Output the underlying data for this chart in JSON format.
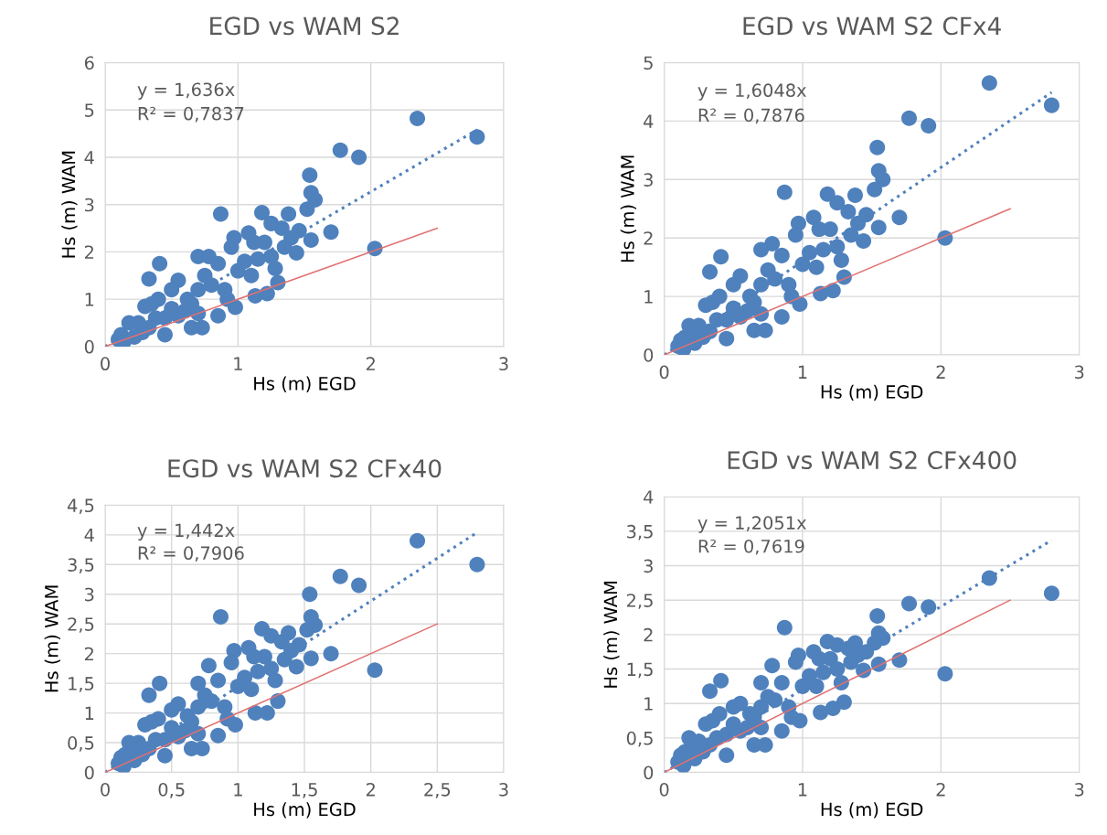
{
  "chart_data": [
    {
      "type": "scatter",
      "title": "EGD vs WAM S2",
      "xlabel": "Hs (m) EGD",
      "ylabel": "Hs (m) WAM",
      "annotations": [
        "y = 1,636x",
        "R² = 0,7837"
      ],
      "xlim": [
        0,
        3
      ],
      "xticks": [
        0,
        1,
        2,
        3
      ],
      "ylim": [
        0,
        6
      ],
      "yticks": [
        0,
        1,
        2,
        3,
        4,
        5,
        6
      ],
      "grid": true,
      "legend": false,
      "series": [
        {
          "type": "scatter",
          "color": "#4f81bd",
          "marker": "circle",
          "x": [
            2.35,
            2.8,
            1.77,
            1.91,
            1.54,
            1.55,
            1.58,
            1.52,
            1.7,
            2.03,
            1.55,
            0.87,
            0.41,
            0.33,
            1.18,
            1.38,
            1.46,
            1.44,
            1.3,
            1.22,
            1.13,
            0.98,
            0.85,
            0.73,
            0.65,
            0.45,
            0.97,
            0.95,
            1.08,
            1.25,
            1.33,
            1.2,
            1.28,
            1.15,
            1.05,
            1.0,
            0.78,
            0.7,
            0.75,
            0.85,
            0.55,
            0.5,
            0.62,
            0.7,
            0.8,
            0.9,
            0.92,
            0.6,
            0.4,
            0.35,
            0.3,
            0.38,
            0.25,
            0.12,
            0.18,
            0.1,
            0.14,
            0.22,
            0.28,
            0.33,
            0.45,
            0.5,
            0.55,
            0.65,
            0.7,
            1.1,
            1.12,
            1.35,
            1.4,
            1.25
          ],
          "values": [
            4.82,
            4.43,
            4.15,
            4.0,
            3.62,
            3.25,
            3.1,
            2.9,
            2.42,
            2.07,
            2.25,
            2.8,
            1.75,
            1.43,
            2.83,
            2.8,
            2.45,
            1.98,
            1.35,
            1.12,
            1.07,
            0.83,
            0.65,
            0.4,
            0.4,
            0.25,
            2.3,
            2.1,
            2.4,
            2.6,
            2.5,
            2.2,
            1.65,
            1.85,
            1.8,
            1.6,
            1.9,
            1.9,
            1.5,
            1.75,
            1.4,
            1.2,
            1.0,
            1.2,
            1.3,
            1.2,
            1.0,
            0.75,
            1.0,
            0.9,
            0.85,
            0.6,
            0.5,
            0.25,
            0.5,
            0.15,
            0.1,
            0.2,
            0.3,
            0.4,
            0.6,
            0.8,
            0.65,
            0.9,
            0.7,
            1.5,
            2.2,
            2.1,
            2.3,
            1.9
          ]
        },
        {
          "type": "line",
          "color": "#4f81bd",
          "line_style": "dotted",
          "marker": "none",
          "x": [
            0,
            2.8
          ],
          "values": [
            0,
            4.58
          ]
        },
        {
          "type": "line",
          "color": "#e07070",
          "line_style": "solid",
          "marker": "none",
          "x": [
            0,
            2.5
          ],
          "values": [
            0,
            2.5
          ]
        }
      ]
    },
    {
      "type": "scatter",
      "title": "EGD vs WAM S2 CFx4",
      "xlabel": "Hs (m) EGD",
      "ylabel": "Hs (m) WAM",
      "annotations": [
        "y = 1,6048x",
        "R² = 0,7876"
      ],
      "xlim": [
        0,
        3
      ],
      "xticks": [
        0,
        1,
        2,
        3
      ],
      "ylim": [
        0,
        5
      ],
      "yticks": [
        0,
        1,
        2,
        3,
        4,
        5
      ],
      "grid": true,
      "legend": false,
      "series": [
        {
          "type": "scatter",
          "color": "#4f81bd",
          "marker": "circle",
          "x": [
            2.35,
            2.8,
            1.77,
            1.91,
            1.54,
            1.55,
            1.58,
            1.52,
            1.7,
            2.03,
            1.55,
            0.87,
            0.41,
            0.33,
            1.18,
            1.38,
            1.46,
            1.44,
            1.3,
            1.22,
            1.13,
            0.98,
            0.85,
            0.73,
            0.65,
            0.45,
            0.97,
            0.95,
            1.08,
            1.25,
            1.33,
            1.2,
            1.28,
            1.15,
            1.05,
            1.0,
            0.78,
            0.7,
            0.75,
            0.85,
            0.55,
            0.5,
            0.62,
            0.7,
            0.8,
            0.9,
            0.92,
            0.6,
            0.4,
            0.35,
            0.3,
            0.38,
            0.25,
            0.2,
            0.15,
            0.12,
            0.18,
            0.1,
            0.14,
            0.22,
            0.28,
            0.33,
            0.45,
            0.5,
            0.55,
            0.65,
            0.7,
            1.1,
            1.12,
            1.35,
            1.4,
            1.25
          ],
          "values": [
            4.65,
            4.27,
            4.05,
            3.92,
            3.55,
            3.15,
            3.0,
            2.83,
            2.35,
            2.0,
            2.18,
            2.78,
            1.68,
            1.42,
            2.75,
            2.73,
            2.4,
            1.95,
            1.33,
            1.1,
            1.05,
            0.87,
            0.65,
            0.42,
            0.42,
            0.28,
            2.25,
            2.05,
            2.35,
            2.6,
            2.45,
            2.15,
            1.62,
            1.8,
            1.75,
            1.55,
            1.9,
            1.8,
            1.45,
            1.7,
            1.35,
            1.2,
            1.0,
            1.2,
            1.3,
            1.2,
            1.0,
            0.75,
            1.0,
            0.9,
            0.85,
            0.6,
            0.5,
            0.4,
            0.3,
            0.25,
            0.5,
            0.15,
            0.1,
            0.2,
            0.3,
            0.4,
            0.6,
            0.8,
            0.65,
            0.9,
            0.7,
            1.5,
            2.15,
            2.05,
            2.25,
            1.85
          ]
        },
        {
          "type": "line",
          "color": "#4f81bd",
          "line_style": "dotted",
          "marker": "none",
          "x": [
            0,
            2.8
          ],
          "values": [
            0,
            4.49
          ]
        },
        {
          "type": "line",
          "color": "#e07070",
          "line_style": "solid",
          "marker": "none",
          "x": [
            0,
            2.5
          ],
          "values": [
            0,
            2.5
          ]
        }
      ]
    },
    {
      "type": "scatter",
      "title": "EGD vs WAM S2 CFx40",
      "xlabel": "Hs (m) EGD",
      "ylabel": "Hs (m) WAM",
      "annotations": [
        "y = 1,442x",
        "R² = 0,7906"
      ],
      "xlim": [
        0,
        3
      ],
      "xticks": [
        0,
        {
          "value": 0.5,
          "label": "0,5"
        },
        1,
        {
          "value": 1.5,
          "label": "1,5"
        },
        2,
        {
          "value": 2.5,
          "label": "2,5"
        },
        3
      ],
      "ylim": [
        0,
        4.5
      ],
      "yticks": [
        0,
        {
          "value": 0.5,
          "label": "0,5"
        },
        1,
        {
          "value": 1.5,
          "label": "1,5"
        },
        2,
        {
          "value": 2.5,
          "label": "2,5"
        },
        3,
        {
          "value": 3.5,
          "label": "3,5"
        },
        4,
        {
          "value": 4.5,
          "label": "4,5"
        }
      ],
      "grid": true,
      "legend": false,
      "series": [
        {
          "type": "scatter",
          "color": "#4f81bd",
          "marker": "circle",
          "x": [
            2.35,
            2.8,
            1.77,
            1.91,
            1.54,
            1.55,
            1.58,
            1.52,
            1.7,
            2.03,
            1.55,
            0.87,
            0.41,
            0.33,
            1.18,
            1.38,
            1.46,
            1.44,
            1.3,
            1.22,
            1.13,
            0.98,
            0.85,
            0.73,
            0.65,
            0.45,
            0.97,
            0.95,
            1.08,
            1.25,
            1.33,
            1.2,
            1.28,
            1.15,
            1.05,
            1.0,
            0.78,
            0.7,
            0.75,
            0.85,
            0.55,
            0.5,
            0.62,
            0.7,
            0.8,
            0.9,
            0.92,
            0.6,
            0.4,
            0.35,
            0.3,
            0.38,
            0.25,
            0.2,
            0.15,
            0.12,
            0.18,
            0.1,
            0.14,
            0.22,
            0.28,
            0.33,
            0.45,
            0.5,
            0.55,
            0.65,
            0.7,
            1.1,
            1.12,
            1.35,
            1.4,
            1.25
          ],
          "values": [
            3.9,
            3.5,
            3.3,
            3.15,
            3.0,
            2.62,
            2.48,
            2.4,
            2.0,
            1.72,
            1.92,
            2.62,
            1.5,
            1.3,
            2.42,
            2.35,
            2.15,
            1.78,
            1.2,
            1.0,
            1.0,
            0.8,
            0.62,
            0.4,
            0.4,
            0.28,
            2.05,
            1.85,
            2.1,
            2.3,
            2.2,
            1.95,
            1.55,
            1.7,
            1.6,
            1.45,
            1.8,
            1.5,
            1.3,
            1.55,
            1.15,
            1.05,
            0.95,
            1.1,
            1.2,
            1.1,
            0.9,
            0.7,
            0.9,
            0.85,
            0.8,
            0.55,
            0.5,
            0.4,
            0.3,
            0.25,
            0.5,
            0.15,
            0.1,
            0.2,
            0.3,
            0.4,
            0.55,
            0.75,
            0.6,
            0.85,
            0.65,
            1.4,
            1.95,
            1.9,
            2.05,
            1.75
          ]
        },
        {
          "type": "line",
          "color": "#4f81bd",
          "line_style": "dotted",
          "marker": "none",
          "x": [
            0,
            2.8
          ],
          "values": [
            0,
            4.04
          ]
        },
        {
          "type": "line",
          "color": "#e07070",
          "line_style": "solid",
          "marker": "none",
          "x": [
            0,
            2.5
          ],
          "values": [
            0,
            2.5
          ]
        }
      ]
    },
    {
      "type": "scatter",
      "title": "EGD vs WAM S2 CFx400",
      "xlabel": "Hs (m) EGD",
      "ylabel": "Hs (m) WAM",
      "annotations": [
        "y = 1,2051x",
        "R² = 0,7619"
      ],
      "xlim": [
        0,
        3
      ],
      "xticks": [
        0,
        1,
        2,
        3
      ],
      "ylim": [
        0,
        4
      ],
      "yticks": [
        0,
        {
          "value": 0.5,
          "label": "0,5"
        },
        1,
        {
          "value": 1.5,
          "label": "1,5"
        },
        2,
        {
          "value": 2.5,
          "label": "2,5"
        },
        3,
        {
          "value": 3.5,
          "label": "3,5"
        },
        4
      ],
      "grid": true,
      "legend": false,
      "series": [
        {
          "type": "scatter",
          "color": "#4f81bd",
          "marker": "circle",
          "x": [
            2.35,
            2.8,
            1.77,
            1.91,
            1.54,
            1.55,
            1.58,
            1.52,
            1.7,
            2.03,
            1.55,
            0.87,
            0.41,
            0.33,
            1.18,
            1.38,
            1.46,
            1.44,
            1.3,
            1.22,
            1.13,
            0.98,
            0.85,
            0.73,
            0.65,
            0.45,
            0.97,
            0.95,
            1.08,
            1.25,
            1.33,
            1.2,
            1.28,
            1.15,
            1.05,
            1.0,
            0.78,
            0.7,
            0.75,
            0.85,
            0.55,
            0.5,
            0.62,
            0.7,
            0.8,
            0.9,
            0.92,
            0.6,
            0.4,
            0.35,
            0.3,
            0.38,
            0.25,
            0.2,
            0.15,
            0.12,
            0.18,
            0.1,
            0.14,
            0.22,
            0.28,
            0.33,
            0.45,
            0.5,
            0.55,
            0.65,
            0.7,
            1.1,
            1.12,
            1.35,
            1.4,
            1.25
          ],
          "values": [
            2.82,
            2.6,
            2.45,
            2.4,
            2.27,
            2.02,
            1.95,
            1.88,
            1.63,
            1.43,
            1.57,
            2.1,
            1.33,
            1.18,
            1.9,
            1.88,
            1.75,
            1.48,
            1.02,
            0.93,
            0.87,
            0.75,
            0.6,
            0.4,
            0.4,
            0.25,
            1.7,
            1.6,
            1.75,
            1.85,
            1.8,
            1.65,
            1.3,
            1.45,
            1.4,
            1.25,
            1.55,
            1.3,
            1.1,
            1.3,
            1.0,
            0.95,
            0.85,
            0.95,
            1.05,
            0.95,
            0.8,
            0.65,
            0.85,
            0.75,
            0.7,
            0.5,
            0.45,
            0.4,
            0.3,
            0.25,
            0.5,
            0.15,
            0.1,
            0.2,
            0.3,
            0.4,
            0.55,
            0.7,
            0.6,
            0.8,
            0.65,
            1.25,
            1.65,
            1.6,
            1.7,
            1.5
          ]
        },
        {
          "type": "line",
          "color": "#4f81bd",
          "line_style": "dotted",
          "marker": "none",
          "x": [
            0,
            2.8
          ],
          "values": [
            0,
            3.37
          ]
        },
        {
          "type": "line",
          "color": "#e07070",
          "line_style": "solid",
          "marker": "none",
          "x": [
            0,
            2.5
          ],
          "values": [
            0,
            2.5
          ]
        }
      ]
    }
  ]
}
